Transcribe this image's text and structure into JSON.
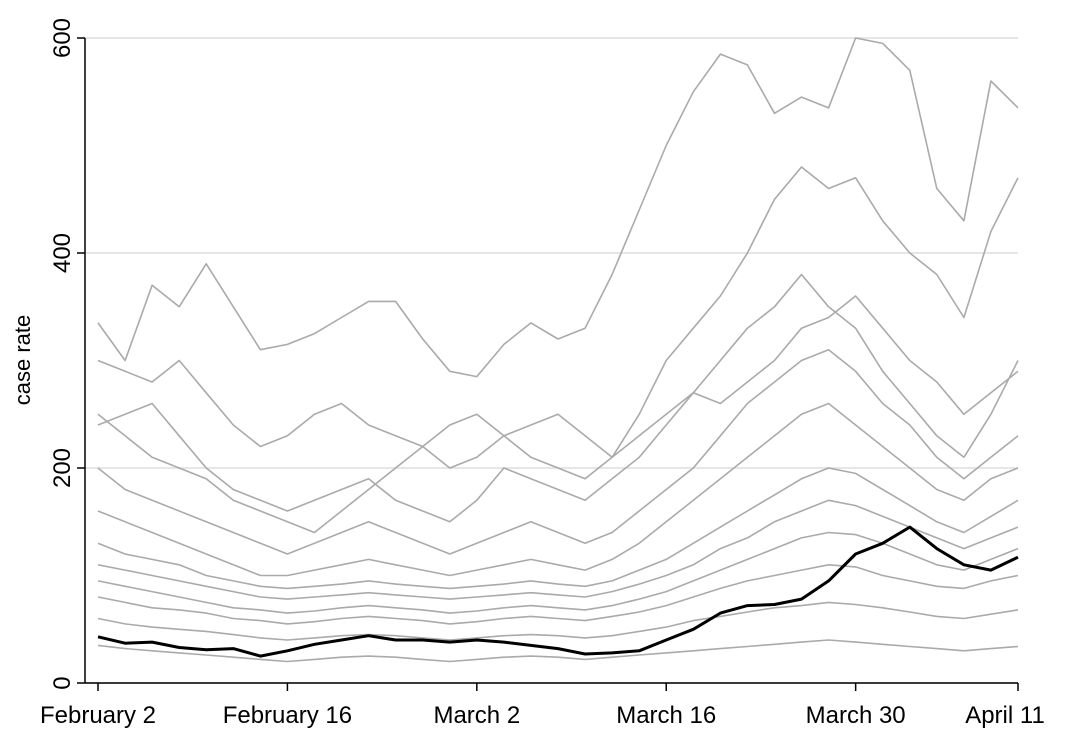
{
  "chart_data": {
    "type": "line",
    "y_label": "case rate",
    "x": [
      "February 2",
      "February 4",
      "February 6",
      "February 8",
      "February 10",
      "February 12",
      "February 14",
      "February 16",
      "February 18",
      "February 20",
      "February 22",
      "February 24",
      "February 26",
      "February 28",
      "March 2",
      "March 4",
      "March 6",
      "March 8",
      "March 10",
      "March 12",
      "March 14",
      "March 16",
      "March 18",
      "March 20",
      "March 22",
      "March 24",
      "March 26",
      "March 28",
      "March 30",
      "April 1",
      "April 3",
      "April 5",
      "April 7",
      "April 9",
      "April 11"
    ],
    "xticks": [
      "February 2",
      "February 16",
      "March 2",
      "March 16",
      "March 30",
      "April 11"
    ],
    "ylim": [
      0,
      600
    ],
    "yticks": [
      0,
      200,
      400,
      600
    ],
    "grid": true,
    "series": [
      {
        "color": "#aaaaaa",
        "values": [
          335,
          300,
          370,
          350,
          390,
          350,
          310,
          315,
          325,
          340,
          355,
          355,
          320,
          290,
          285,
          315,
          335,
          320,
          330,
          380,
          440,
          500,
          550,
          585,
          575,
          530,
          545,
          535,
          600,
          595,
          570,
          460,
          430,
          560,
          535
        ]
      },
      {
        "color": "#aaaaaa",
        "values": [
          300,
          290,
          280,
          300,
          270,
          240,
          220,
          230,
          250,
          260,
          240,
          230,
          220,
          200,
          210,
          230,
          240,
          250,
          230,
          210,
          250,
          300,
          330,
          360,
          400,
          450,
          480,
          460,
          470,
          430,
          400,
          380,
          340,
          420,
          470
        ]
      },
      {
        "color": "#aaaaaa",
        "values": [
          240,
          250,
          260,
          230,
          200,
          180,
          170,
          160,
          170,
          180,
          190,
          170,
          160,
          150,
          170,
          200,
          190,
          180,
          170,
          190,
          210,
          240,
          270,
          300,
          330,
          350,
          380,
          350,
          330,
          290,
          260,
          230,
          210,
          250,
          300
        ]
      },
      {
        "color": "#aaaaaa",
        "values": [
          250,
          230,
          210,
          200,
          190,
          170,
          160,
          150,
          140,
          160,
          180,
          200,
          220,
          240,
          250,
          230,
          210,
          200,
          190,
          210,
          230,
          250,
          270,
          260,
          280,
          300,
          330,
          340,
          360,
          330,
          300,
          280,
          250,
          270,
          290
        ]
      },
      {
        "color": "#aaaaaa",
        "values": [
          200,
          180,
          170,
          160,
          150,
          140,
          130,
          120,
          130,
          140,
          150,
          140,
          130,
          120,
          130,
          140,
          150,
          140,
          130,
          140,
          160,
          180,
          200,
          230,
          260,
          280,
          300,
          310,
          290,
          260,
          240,
          210,
          190,
          210,
          230
        ]
      },
      {
        "color": "#aaaaaa",
        "values": [
          160,
          150,
          140,
          130,
          120,
          110,
          100,
          100,
          105,
          110,
          115,
          110,
          105,
          100,
          105,
          110,
          115,
          110,
          105,
          115,
          130,
          150,
          170,
          190,
          210,
          230,
          250,
          260,
          240,
          220,
          200,
          180,
          170,
          190,
          200
        ]
      },
      {
        "color": "#aaaaaa",
        "values": [
          130,
          120,
          115,
          110,
          100,
          95,
          90,
          88,
          90,
          92,
          95,
          92,
          90,
          88,
          90,
          92,
          95,
          92,
          90,
          95,
          105,
          115,
          130,
          145,
          160,
          175,
          190,
          200,
          195,
          180,
          165,
          150,
          140,
          155,
          170
        ]
      },
      {
        "color": "#aaaaaa",
        "values": [
          110,
          105,
          100,
          95,
          90,
          85,
          80,
          78,
          80,
          82,
          84,
          82,
          80,
          78,
          80,
          82,
          84,
          82,
          80,
          85,
          92,
          100,
          110,
          125,
          135,
          150,
          160,
          170,
          165,
          155,
          145,
          135,
          125,
          135,
          145
        ]
      },
      {
        "color": "#aaaaaa",
        "values": [
          95,
          90,
          85,
          80,
          75,
          70,
          68,
          65,
          67,
          70,
          72,
          70,
          68,
          65,
          67,
          70,
          72,
          70,
          68,
          72,
          78,
          85,
          95,
          105,
          115,
          125,
          135,
          140,
          138,
          130,
          120,
          110,
          105,
          115,
          125
        ]
      },
      {
        "color": "#aaaaaa",
        "values": [
          80,
          75,
          70,
          68,
          65,
          60,
          58,
          55,
          57,
          60,
          62,
          60,
          58,
          55,
          57,
          60,
          62,
          60,
          58,
          62,
          66,
          72,
          80,
          88,
          95,
          100,
          105,
          110,
          108,
          100,
          95,
          90,
          88,
          95,
          100
        ]
      },
      {
        "color": "#aaaaaa",
        "values": [
          60,
          55,
          52,
          50,
          48,
          45,
          42,
          40,
          42,
          44,
          45,
          44,
          42,
          40,
          42,
          44,
          45,
          44,
          42,
          44,
          48,
          52,
          58,
          62,
          66,
          70,
          72,
          75,
          73,
          70,
          66,
          62,
          60,
          64,
          68
        ]
      },
      {
        "color": "#aaaaaa",
        "values": [
          35,
          32,
          30,
          28,
          26,
          24,
          22,
          20,
          22,
          24,
          25,
          24,
          22,
          20,
          22,
          24,
          25,
          24,
          22,
          24,
          26,
          28,
          30,
          32,
          34,
          36,
          38,
          40,
          38,
          36,
          34,
          32,
          30,
          32,
          34
        ]
      },
      {
        "color": "#000000",
        "values": [
          43,
          37,
          38,
          33,
          31,
          32,
          25,
          30,
          36,
          40,
          44,
          40,
          40,
          38,
          40,
          38,
          35,
          32,
          27,
          28,
          30,
          40,
          50,
          65,
          72,
          73,
          78,
          95,
          120,
          130,
          145,
          125,
          110,
          105,
          117
        ]
      }
    ]
  }
}
